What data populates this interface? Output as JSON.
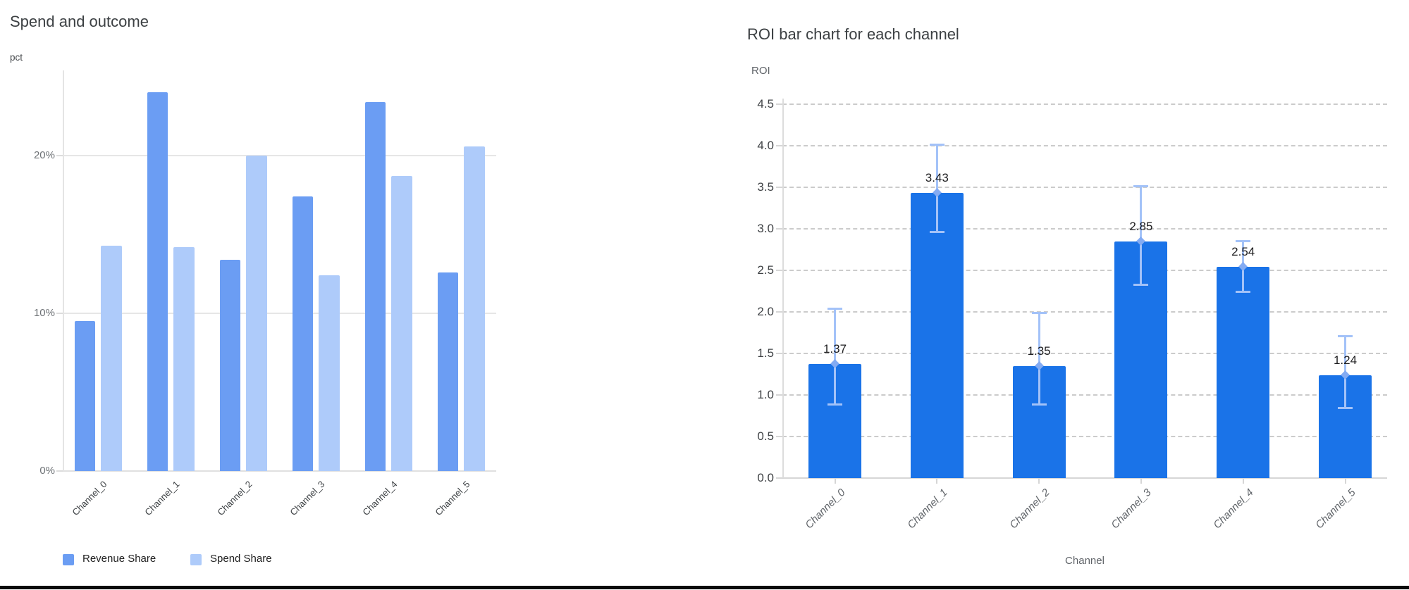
{
  "accent_colors": {
    "revenue_share_blue": "#6b9df3",
    "spend_share_light_blue": "#aecbfa",
    "roi_bar_blue": "#1a73e8",
    "error_bar_light_blue": "#a3c2f8",
    "error_marker_blue": "#83abf3"
  },
  "chart_data": [
    {
      "type": "bar",
      "title": "Spend and outcome",
      "ylabel": "pct",
      "xlabel": "",
      "categories": [
        "Channel_0",
        "Channel_1",
        "Channel_2",
        "Channel_3",
        "Channel_4",
        "Channel_5"
      ],
      "series": [
        {
          "name": "Revenue Share",
          "color": "#6b9df3",
          "values": [
            9.5,
            24.0,
            13.4,
            17.4,
            23.4,
            12.6
          ]
        },
        {
          "name": "Spend Share",
          "color": "#aecbfa",
          "values": [
            14.3,
            14.2,
            20.0,
            12.4,
            18.7,
            20.6
          ]
        }
      ],
      "y_ticks": [
        {
          "value": 0,
          "label": "0%"
        },
        {
          "value": 10,
          "label": "10%"
        },
        {
          "value": 20,
          "label": "20%"
        }
      ],
      "ylim": [
        0,
        25.4
      ],
      "grid": "solid",
      "legend_position": "bottom-left"
    },
    {
      "type": "bar",
      "title": "ROI bar chart for each channel",
      "ylabel": "ROI",
      "xlabel": "Channel",
      "categories": [
        "Channel_0",
        "Channel_1",
        "Channel_2",
        "Channel_3",
        "Channel_4",
        "Channel_5"
      ],
      "values": [
        1.37,
        3.43,
        1.35,
        2.85,
        2.54,
        1.24
      ],
      "value_labels": [
        "1.37",
        "3.43",
        "1.35",
        "2.85",
        "2.54",
        "1.24"
      ],
      "error_low": [
        0.88,
        2.96,
        0.88,
        2.32,
        2.24,
        0.84
      ],
      "error_high": [
        2.04,
        4.02,
        1.99,
        3.52,
        2.86,
        1.71
      ],
      "bar_color": "#1a73e8",
      "error_color": "#a3c2f8",
      "y_ticks": [
        {
          "value": 0.0,
          "label": "0.0"
        },
        {
          "value": 0.5,
          "label": "0.5"
        },
        {
          "value": 1.0,
          "label": "1.0"
        },
        {
          "value": 1.5,
          "label": "1.5"
        },
        {
          "value": 2.0,
          "label": "2.0"
        },
        {
          "value": 2.5,
          "label": "2.5"
        },
        {
          "value": 3.0,
          "label": "3.0"
        },
        {
          "value": 3.5,
          "label": "3.5"
        },
        {
          "value": 4.0,
          "label": "4.0"
        },
        {
          "value": 4.5,
          "label": "4.5"
        }
      ],
      "ylim": [
        0,
        4.57
      ],
      "grid": "dashed",
      "legend_position": "none"
    }
  ]
}
